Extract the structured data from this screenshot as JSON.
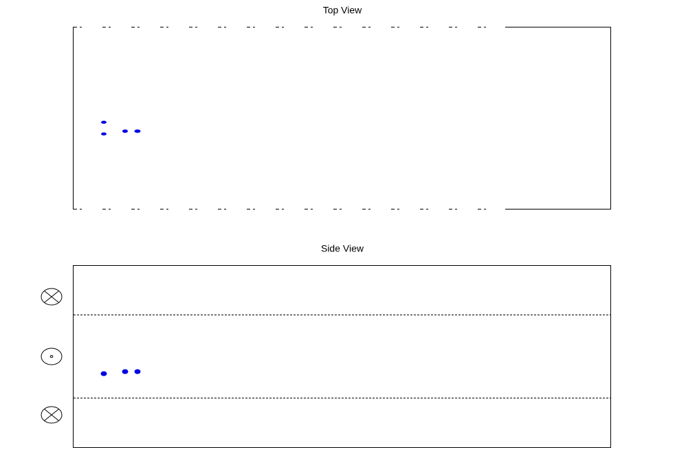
{
  "panels": [
    {
      "title": "Top View"
    },
    {
      "title": "Side View"
    }
  ]
}
